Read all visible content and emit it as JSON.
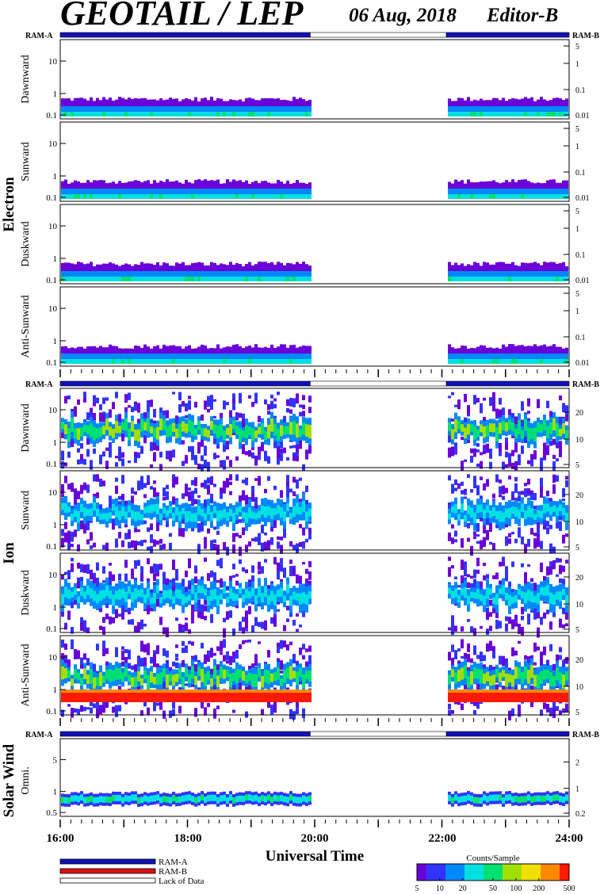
{
  "header": {
    "title": "GEOTAIL / LEP",
    "date": "06 Aug, 2018",
    "editor": "Editor-B"
  },
  "colors": {
    "ram_a": "#1111bb",
    "ram_b": "#dd1111",
    "lack": "#ffffff",
    "colormap": [
      "#6a00d8",
      "#3333ff",
      "#0088ff",
      "#00e0e0",
      "#00e070",
      "#a0e000",
      "#f0e000",
      "#ff8800",
      "#ff1a00"
    ]
  },
  "groups": [
    {
      "name": "Electron",
      "ram_left": "RAM-A",
      "ram_right": "RAM-B",
      "panels": [
        {
          "label": "Dawnward",
          "left_ticks": [
            "10",
            "1",
            "0.1"
          ],
          "right_ticks": [
            "5",
            "1",
            "0.1",
            "0.01"
          ]
        },
        {
          "label": "Sunward",
          "left_ticks": [
            "10",
            "1",
            "0.1"
          ],
          "right_ticks": [
            "5",
            "1",
            "0.1",
            "0.01"
          ]
        },
        {
          "label": "Duskward",
          "left_ticks": [
            "10",
            "1",
            "0.1"
          ],
          "right_ticks": [
            "5",
            "1",
            "0.1",
            "0.01"
          ]
        },
        {
          "label": "Anti-Sunward",
          "left_ticks": [
            "10",
            "1",
            "0.1"
          ],
          "right_ticks": [
            "5",
            "1",
            "0.1",
            "0.01"
          ]
        }
      ]
    },
    {
      "name": "Ion",
      "ram_left": "RAM-A",
      "ram_right": "RAM-B",
      "panels": [
        {
          "label": "Dawnward",
          "left_ticks": [
            "10",
            "1",
            "0.1"
          ],
          "right_ticks": [
            "20",
            "10",
            "5"
          ]
        },
        {
          "label": "Sunward",
          "left_ticks": [
            "10",
            "1",
            "0.1"
          ],
          "right_ticks": [
            "20",
            "10",
            "5"
          ]
        },
        {
          "label": "Duskward",
          "left_ticks": [
            "10",
            "1",
            "0.1"
          ],
          "right_ticks": [
            "20",
            "10",
            "5"
          ]
        },
        {
          "label": "Anti-Sunward",
          "left_ticks": [
            "10",
            "1",
            "0.1"
          ],
          "right_ticks": [
            "20",
            "10",
            "5"
          ]
        }
      ]
    },
    {
      "name": "Solar Wind",
      "ram_left": "RAM-A",
      "ram_right": "RAM-B",
      "panels": [
        {
          "label": "Omni.",
          "left_ticks": [
            "5",
            "1",
            "0.5"
          ],
          "right_ticks": [
            "2",
            "1",
            "0.2"
          ]
        }
      ]
    }
  ],
  "legend": {
    "items": [
      "RAM-A",
      "RAM-B",
      "Lack of Data"
    ],
    "colorbar_title": "Counts/Sample",
    "colorbar_ticks": [
      "5",
      "10",
      "20",
      "50",
      "100",
      "200",
      "500"
    ]
  },
  "chart_data": {
    "type": "heatmap",
    "title": "GEOTAIL / LEP",
    "xlabel": "Universal Time",
    "xticks": [
      "16:00",
      "18:00",
      "20:00",
      "22:00",
      "24:00"
    ],
    "x_range_hours": [
      16,
      24
    ],
    "data_gaps_hours": [
      [
        19.93,
        22.07
      ]
    ],
    "colorbar": {
      "label": "Counts/Sample",
      "range": [
        5,
        500
      ],
      "scale": "log"
    },
    "ram_mode": {
      "electron": [
        {
          "from": 16.0,
          "to": 19.93,
          "mode": "RAM-A"
        },
        {
          "from": 19.93,
          "to": 22.07,
          "mode": "Lack of Data"
        },
        {
          "from": 22.07,
          "to": 24.0,
          "mode": "RAM-A"
        }
      ],
      "ion": [
        {
          "from": 16.0,
          "to": 19.93,
          "mode": "RAM-A"
        },
        {
          "from": 19.93,
          "to": 22.07,
          "mode": "Lack of Data"
        },
        {
          "from": 22.07,
          "to": 24.0,
          "mode": "RAM-A"
        }
      ],
      "solar_wind": [
        {
          "from": 16.0,
          "to": 19.93,
          "mode": "RAM-A"
        },
        {
          "from": 19.93,
          "to": 22.07,
          "mode": "Lack of Data"
        },
        {
          "from": 22.07,
          "to": 24.0,
          "mode": "RAM-A"
        }
      ]
    }
  }
}
